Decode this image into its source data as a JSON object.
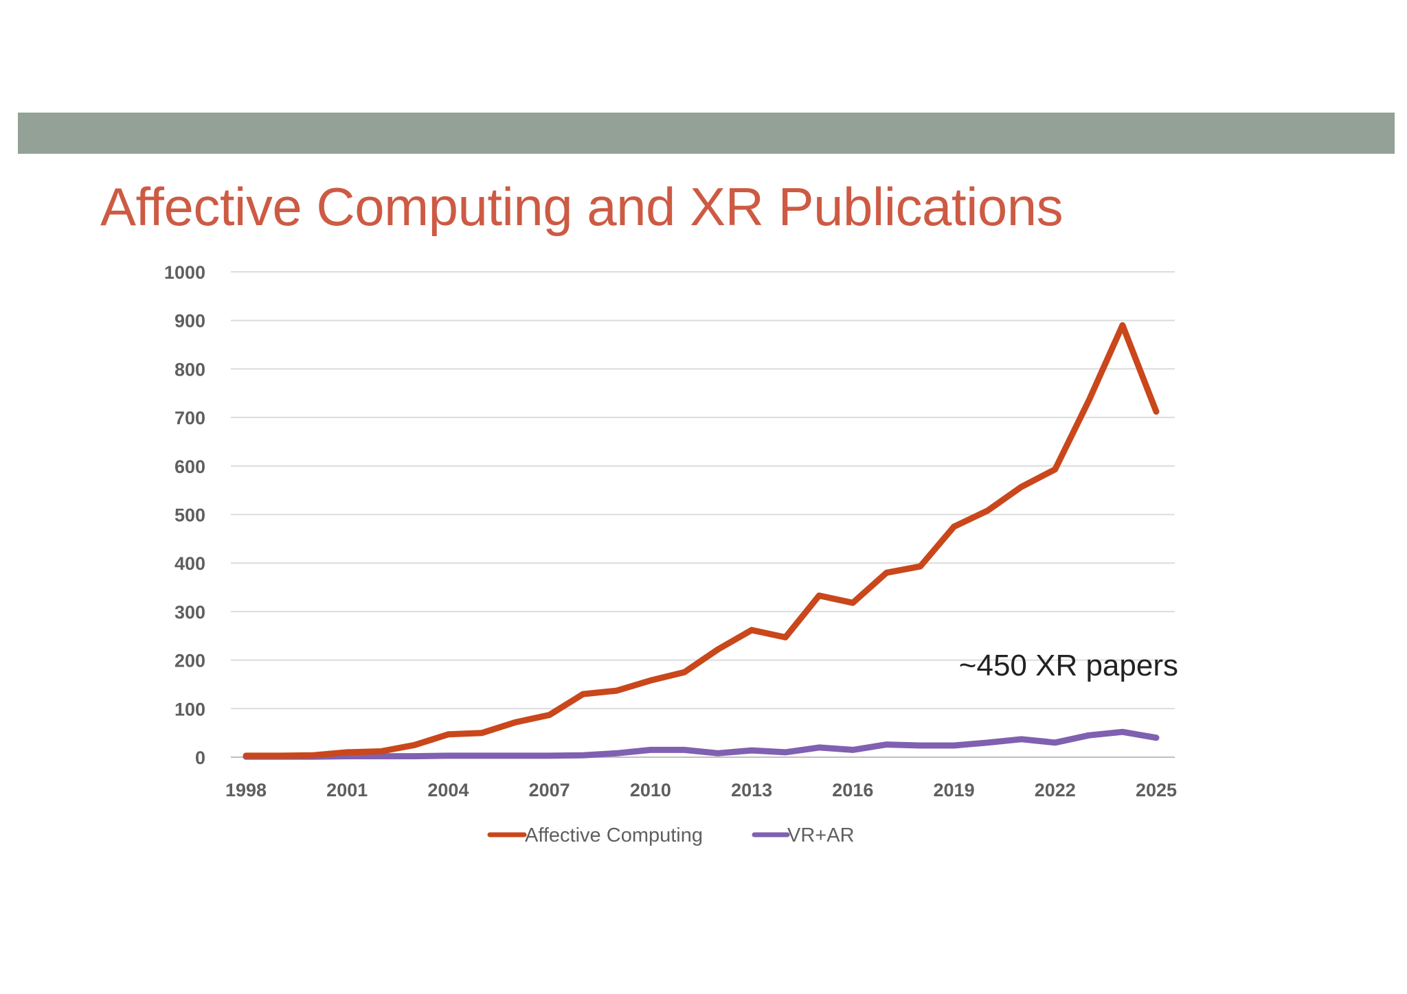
{
  "slide": {
    "title": "Affective Computing and XR Publications"
  },
  "colors": {
    "band": "#93a196",
    "title": "#cd5a43",
    "affective": "#c9471b",
    "vrar": "#8060b0"
  },
  "chart_data": {
    "type": "line",
    "title": "",
    "xlabel": "",
    "ylabel": "",
    "ylim": [
      0,
      1000
    ],
    "yticks": [
      "0",
      "100",
      "200",
      "300",
      "400",
      "500",
      "600",
      "700",
      "800",
      "900",
      "1000"
    ],
    "xlim": [
      1998,
      2025
    ],
    "xticks": [
      "1998",
      "2001",
      "2004",
      "2007",
      "2010",
      "2013",
      "2016",
      "2019",
      "2022",
      "2025"
    ],
    "grid": true,
    "legend_position": "bottom",
    "x": [
      1998,
      1999,
      2000,
      2001,
      2002,
      2003,
      2004,
      2005,
      2006,
      2007,
      2008,
      2009,
      2010,
      2011,
      2012,
      2013,
      2014,
      2015,
      2016,
      2017,
      2018,
      2019,
      2020,
      2021,
      2022,
      2023,
      2024,
      2025
    ],
    "series": [
      {
        "name": "Affective Computing",
        "color": "#c9471b",
        "values": [
          3,
          3,
          4,
          10,
          12,
          25,
          47,
          50,
          72,
          87,
          130,
          137,
          158,
          175,
          222,
          262,
          247,
          333,
          318,
          380,
          393,
          475,
          508,
          557,
          593,
          735,
          890,
          712
        ]
      },
      {
        "name": "VR+AR",
        "color": "#8060b0",
        "values": [
          1,
          1,
          1,
          2,
          2,
          2,
          3,
          3,
          3,
          3,
          4,
          8,
          15,
          15,
          8,
          14,
          10,
          20,
          15,
          26,
          24,
          24,
          30,
          37,
          30,
          45,
          52,
          40
        ]
      }
    ],
    "annotations": [
      {
        "text": "~450 XR papers"
      }
    ]
  }
}
